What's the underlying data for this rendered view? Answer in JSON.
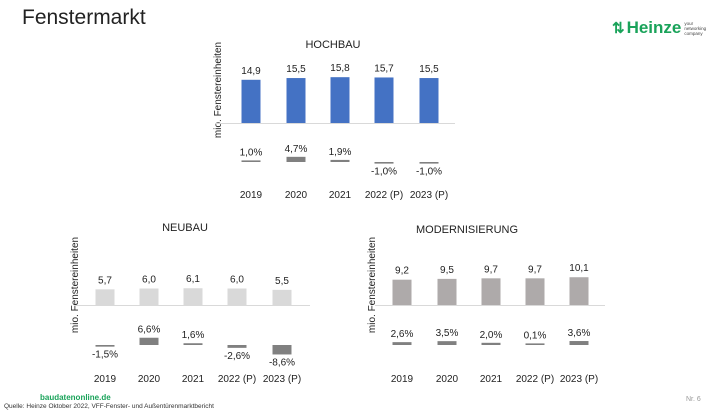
{
  "header": {
    "title": "Fenstermarkt"
  },
  "logo": {
    "brand": "Heinze",
    "tagline": "your networking company",
    "color": "#1aa35a"
  },
  "footer": {
    "site": "baudatenonline.de",
    "source": "Quelle: Heinze Oktober 2022, VFF-Fenster- und Außentürenmarktbericht",
    "page": "Nr. 6"
  },
  "chart_data": [
    {
      "type": "bar",
      "title": "HOCHBAU",
      "ylabel": "mio. Fenstereinheiten",
      "categories": [
        "2019",
        "2020",
        "2021",
        "2022 (P)",
        "2023 (P)"
      ],
      "values": [
        14.9,
        15.5,
        15.8,
        15.7,
        15.5
      ],
      "value_labels": [
        "14,9",
        "15,5",
        "15,8",
        "15,7",
        "15,5"
      ],
      "change_pct": [
        1.0,
        4.7,
        1.9,
        -1.0,
        -1.0
      ],
      "change_labels": [
        "1,0%",
        "4,7%",
        "1,9%",
        "-1,0%",
        "-1,0%"
      ],
      "bar_color": "#4472c4",
      "change_color": "#808080",
      "ylim": [
        0,
        16
      ],
      "grid": false
    },
    {
      "type": "bar",
      "title": "NEUBAU",
      "ylabel": "mio. Fenstereinheiten",
      "categories": [
        "2019",
        "2020",
        "2021",
        "2022 (P)",
        "2023 (P)"
      ],
      "values": [
        5.7,
        6.0,
        6.1,
        6.0,
        5.5
      ],
      "value_labels": [
        "5,7",
        "6,0",
        "6,1",
        "6,0",
        "5,5"
      ],
      "change_pct": [
        -1.5,
        6.6,
        1.6,
        -2.6,
        -8.6
      ],
      "change_labels": [
        "-1,5%",
        "6,6%",
        "1,6%",
        "-2,6%",
        "-8,6%"
      ],
      "bar_color": "#d9d9d9",
      "change_color": "#808080",
      "ylim": [
        0,
        16
      ],
      "grid": false
    },
    {
      "type": "bar",
      "title": "MODERNISIERUNG",
      "ylabel": "mio. Fenstereinheiten",
      "categories": [
        "2019",
        "2020",
        "2021",
        "2022 (P)",
        "2023 (P)"
      ],
      "values": [
        9.2,
        9.5,
        9.7,
        9.7,
        10.1
      ],
      "value_labels": [
        "9,2",
        "9,5",
        "9,7",
        "9,7",
        "10,1"
      ],
      "change_pct": [
        2.6,
        3.5,
        2.0,
        0.1,
        3.6
      ],
      "change_labels": [
        "2,6%",
        "3,5%",
        "2,0%",
        "0,1%",
        "3,6%"
      ],
      "bar_color": "#aeaaaa",
      "change_color": "#808080",
      "ylim": [
        0,
        16
      ],
      "grid": false
    }
  ]
}
